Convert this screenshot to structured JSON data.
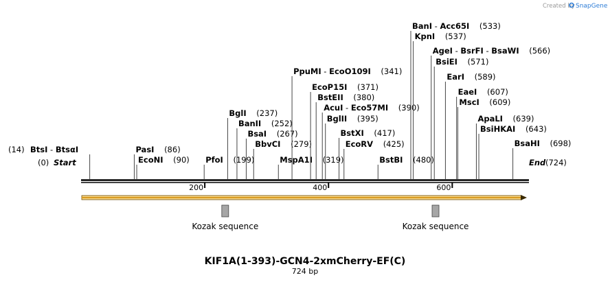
{
  "credit": {
    "prefix": "Created by",
    "brand": "SnapGene"
  },
  "map": {
    "start_label": "Start",
    "start_pos": "(0)",
    "end_label": "End",
    "end_pos": "(724)",
    "axis_min": 0,
    "axis_max": 724,
    "ticks": [
      200,
      400,
      600
    ]
  },
  "enzymes": [
    {
      "name": "BtsI",
      "alt": "BtsαI",
      "pos": 14,
      "pos_text": "(14)",
      "side": "left"
    },
    {
      "name": "PasI",
      "pos": 86,
      "pos_text": "(86)"
    },
    {
      "name": "EcoNI",
      "pos": 90,
      "pos_text": "(90)"
    },
    {
      "name": "PfoI",
      "pos": 199,
      "pos_text": "(199)"
    },
    {
      "name": "BglI",
      "pos": 237,
      "pos_text": "(237)"
    },
    {
      "name": "BanII",
      "pos": 252,
      "pos_text": "(252)"
    },
    {
      "name": "BsaI",
      "pos": 267,
      "pos_text": "(267)"
    },
    {
      "name": "BbvCI",
      "pos": 279,
      "pos_text": "(279)"
    },
    {
      "name": "MspA1I",
      "pos": 319,
      "pos_text": "(319)"
    },
    {
      "name": "PpuMI",
      "alt": "EcoO109I",
      "pos": 341,
      "pos_text": "(341)"
    },
    {
      "name": "EcoP15I",
      "pos": 371,
      "pos_text": "(371)"
    },
    {
      "name": "BstEII",
      "pos": 380,
      "pos_text": "(380)"
    },
    {
      "name": "AcuI",
      "alt": "Eco57MI",
      "pos": 390,
      "pos_text": "(390)"
    },
    {
      "name": "BglII",
      "pos": 395,
      "pos_text": "(395)"
    },
    {
      "name": "BstXI",
      "pos": 417,
      "pos_text": "(417)"
    },
    {
      "name": "EcoRV",
      "pos": 425,
      "pos_text": "(425)"
    },
    {
      "name": "BstBI",
      "pos": 480,
      "pos_text": "(480)"
    },
    {
      "name": "BanI",
      "alt": "Acc65I",
      "pos": 533,
      "pos_text": "(533)"
    },
    {
      "name": "KpnI",
      "pos": 537,
      "pos_text": "(537)"
    },
    {
      "name": "AgeI",
      "alt": "BsrFI",
      "alt2": "BsaWI",
      "pos": 566,
      "pos_text": "(566)"
    },
    {
      "name": "BsiEI",
      "pos": 571,
      "pos_text": "(571)"
    },
    {
      "name": "EarI",
      "pos": 589,
      "pos_text": "(589)"
    },
    {
      "name": "EaeI",
      "pos": 607,
      "pos_text": "(607)"
    },
    {
      "name": "MscI",
      "pos": 609,
      "pos_text": "(609)"
    },
    {
      "name": "ApaLI",
      "pos": 639,
      "pos_text": "(639)"
    },
    {
      "name": "BsiHKAI",
      "pos": 643,
      "pos_text": "(643)"
    },
    {
      "name": "BsaHI",
      "pos": 698,
      "pos_text": "(698)"
    }
  ],
  "features": [
    {
      "name": "Kozak sequence",
      "pos": 233
    },
    {
      "name": "Kozak sequence",
      "pos": 573
    }
  ],
  "orf": {
    "start": 0,
    "end": 724,
    "color": "#f0b030"
  },
  "title": "KIF1A(1-393)-GCN4-2xmCherry-EF(C)",
  "length_text": "724 bp"
}
